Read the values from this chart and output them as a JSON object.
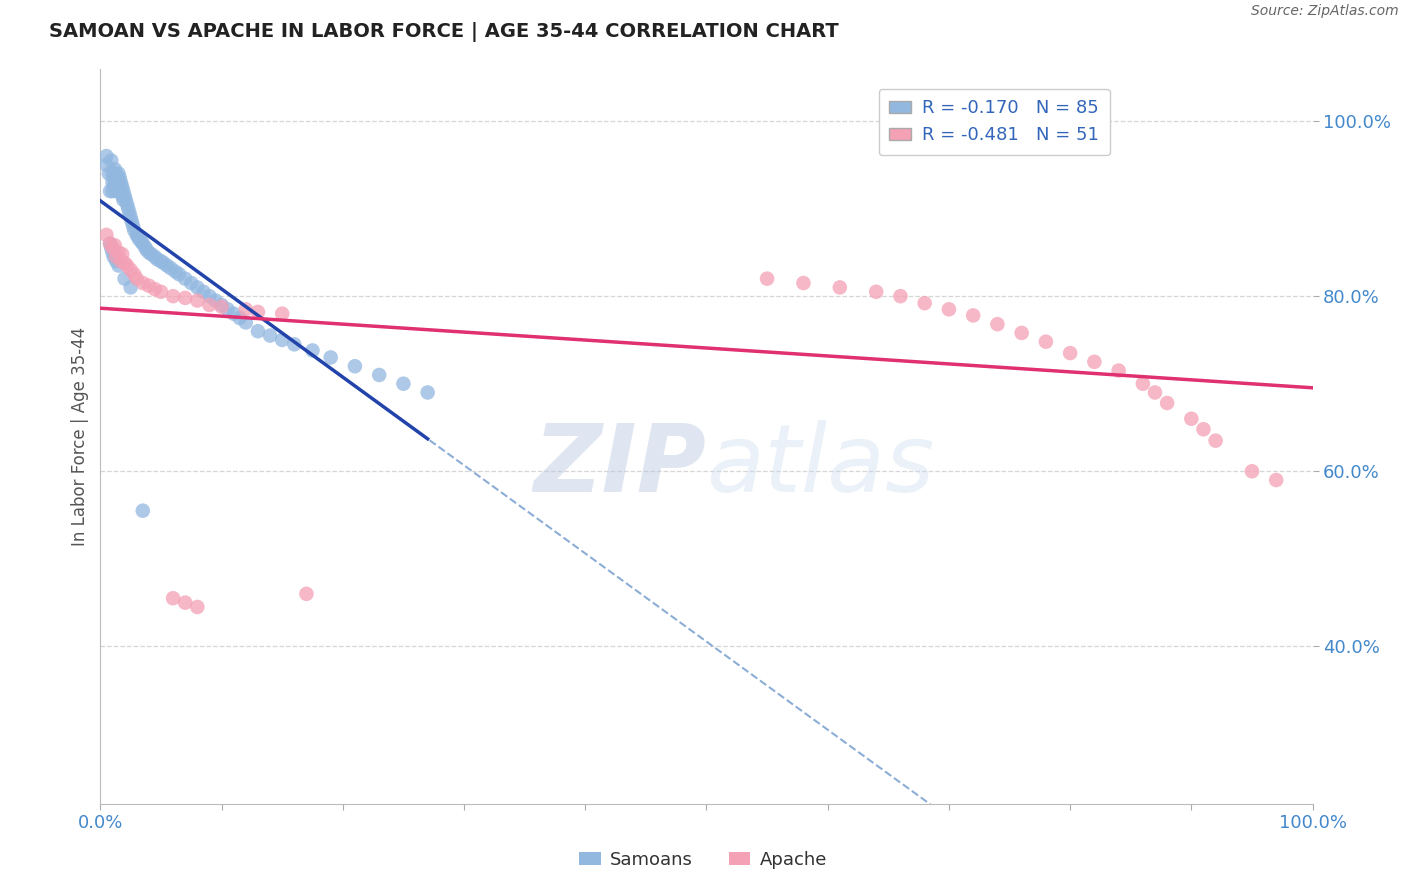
{
  "title": "SAMOAN VS APACHE IN LABOR FORCE | AGE 35-44 CORRELATION CHART",
  "source": "Source: ZipAtlas.com",
  "ylabel": "In Labor Force | Age 35-44",
  "xlim": [
    0.0,
    1.0
  ],
  "ylim": [
    0.22,
    1.06
  ],
  "samoans_color": "#92b8e0",
  "apache_color": "#f4a0b5",
  "samoans_line_color": "#2244aa",
  "apache_line_color": "#e03070",
  "samoans_line_dash_color": "#7099cc",
  "tick_label_color": "#4488cc",
  "watermark_color": "#ccd8ee",
  "legend_R1": "R = -0.170",
  "legend_N1": "N = 85",
  "legend_R2": "R = -0.481",
  "legend_N2": "N = 51",
  "samoans_x": [
    0.005,
    0.005,
    0.007,
    0.008,
    0.009,
    0.01,
    0.01,
    0.01,
    0.011,
    0.011,
    0.012,
    0.012,
    0.012,
    0.013,
    0.013,
    0.013,
    0.014,
    0.014,
    0.015,
    0.015,
    0.015,
    0.016,
    0.016,
    0.017,
    0.017,
    0.018,
    0.018,
    0.019,
    0.019,
    0.02,
    0.021,
    0.022,
    0.023,
    0.024,
    0.025,
    0.026,
    0.027,
    0.028,
    0.03,
    0.031,
    0.032,
    0.034,
    0.035,
    0.037,
    0.038,
    0.04,
    0.042,
    0.045,
    0.047,
    0.05,
    0.052,
    0.055,
    0.058,
    0.062,
    0.065,
    0.07,
    0.075,
    0.08,
    0.085,
    0.09,
    0.095,
    0.1,
    0.105,
    0.11,
    0.115,
    0.12,
    0.13,
    0.14,
    0.15,
    0.16,
    0.175,
    0.19,
    0.21,
    0.23,
    0.25,
    0.27,
    0.008,
    0.009,
    0.01,
    0.011,
    0.013,
    0.015,
    0.02,
    0.025,
    0.035
  ],
  "samoans_y": [
    0.95,
    0.96,
    0.94,
    0.92,
    0.955,
    0.94,
    0.93,
    0.92,
    0.935,
    0.925,
    0.945,
    0.935,
    0.925,
    0.94,
    0.93,
    0.92,
    0.935,
    0.925,
    0.94,
    0.93,
    0.92,
    0.935,
    0.925,
    0.93,
    0.92,
    0.925,
    0.915,
    0.92,
    0.91,
    0.915,
    0.91,
    0.905,
    0.9,
    0.895,
    0.89,
    0.885,
    0.88,
    0.875,
    0.87,
    0.868,
    0.865,
    0.862,
    0.86,
    0.856,
    0.853,
    0.85,
    0.848,
    0.845,
    0.842,
    0.84,
    0.838,
    0.835,
    0.832,
    0.828,
    0.825,
    0.82,
    0.815,
    0.81,
    0.805,
    0.8,
    0.795,
    0.79,
    0.785,
    0.78,
    0.775,
    0.77,
    0.76,
    0.755,
    0.75,
    0.745,
    0.738,
    0.73,
    0.72,
    0.71,
    0.7,
    0.69,
    0.86,
    0.855,
    0.85,
    0.845,
    0.84,
    0.835,
    0.82,
    0.81,
    0.555
  ],
  "apache_x": [
    0.005,
    0.008,
    0.01,
    0.012,
    0.013,
    0.015,
    0.017,
    0.018,
    0.02,
    0.022,
    0.025,
    0.028,
    0.03,
    0.035,
    0.04,
    0.045,
    0.05,
    0.06,
    0.07,
    0.08,
    0.09,
    0.1,
    0.12,
    0.13,
    0.15,
    0.17,
    0.06,
    0.07,
    0.08,
    0.55,
    0.58,
    0.61,
    0.64,
    0.66,
    0.68,
    0.7,
    0.72,
    0.74,
    0.76,
    0.78,
    0.8,
    0.82,
    0.84,
    0.86,
    0.87,
    0.88,
    0.9,
    0.91,
    0.92,
    0.95,
    0.97
  ],
  "apache_y": [
    0.87,
    0.86,
    0.855,
    0.858,
    0.845,
    0.85,
    0.84,
    0.848,
    0.838,
    0.835,
    0.83,
    0.825,
    0.82,
    0.815,
    0.812,
    0.808,
    0.805,
    0.8,
    0.798,
    0.795,
    0.79,
    0.788,
    0.785,
    0.782,
    0.78,
    0.46,
    0.455,
    0.45,
    0.445,
    0.82,
    0.815,
    0.81,
    0.805,
    0.8,
    0.792,
    0.785,
    0.778,
    0.768,
    0.758,
    0.748,
    0.735,
    0.725,
    0.715,
    0.7,
    0.69,
    0.678,
    0.66,
    0.648,
    0.635,
    0.6,
    0.59
  ],
  "background_color": "#ffffff",
  "grid_color": "#cccccc"
}
